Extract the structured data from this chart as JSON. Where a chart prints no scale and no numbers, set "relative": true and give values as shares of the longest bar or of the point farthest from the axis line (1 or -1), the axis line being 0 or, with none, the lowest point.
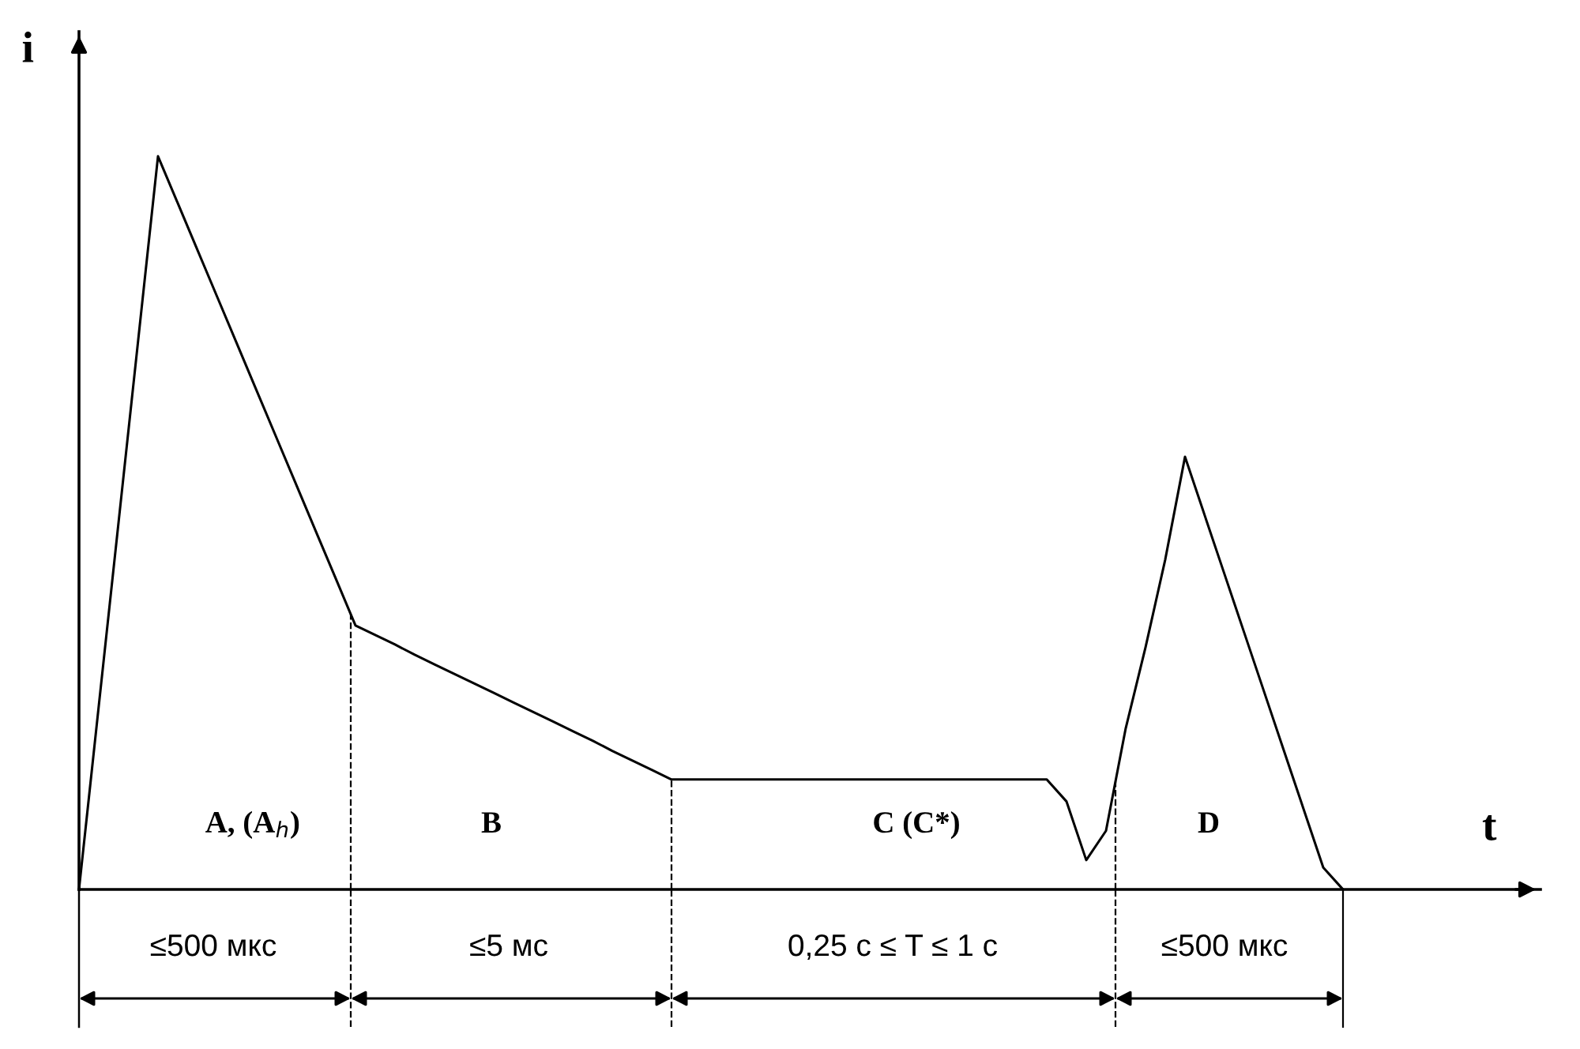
{
  "chart_data": {
    "type": "line",
    "relative": true,
    "xlabel": "t",
    "ylabel": "i",
    "color": "#000000",
    "categories": [
      null,
      null,
      null,
      null,
      null,
      null,
      null,
      null,
      null,
      null,
      null,
      null,
      null,
      null,
      null,
      null,
      null,
      null,
      null,
      null,
      null,
      null,
      null,
      null,
      null,
      null,
      null,
      null,
      null,
      null,
      null,
      null,
      null,
      null,
      null,
      null,
      null,
      null,
      null,
      null,
      null,
      null,
      null,
      null,
      null,
      null,
      null,
      null,
      null,
      null,
      null,
      null,
      null,
      null,
      null,
      null,
      null,
      null,
      null,
      null,
      null,
      null,
      null,
      null,
      null
    ],
    "values": [
      0,
      0.25,
      0.5,
      0.75,
      1,
      0.936,
      0.872,
      0.808,
      0.744,
      0.68,
      0.616,
      0.552,
      0.488,
      0.424,
      0.36,
      0.347,
      0.334,
      0.32,
      0.307,
      0.294,
      0.281,
      0.268,
      0.255,
      0.242,
      0.229,
      0.216,
      0.203,
      0.189,
      0.176,
      0.163,
      0.15,
      0.15,
      0.15,
      0.15,
      0.15,
      0.15,
      0.15,
      0.15,
      0.15,
      0.15,
      0.15,
      0.15,
      0.15,
      0.15,
      0.15,
      0.15,
      0.15,
      0.15,
      0.15,
      0.15,
      0.12,
      0.04,
      0.08,
      0.22,
      0.33,
      0.45,
      0.59,
      0.51,
      0.43,
      0.35,
      0.27,
      0.19,
      0.11,
      0.03,
      0
    ],
    "marker": "none",
    "line_style": "solid",
    "annotations": [
      "A, (A$_{h}$)",
      "B",
      "C (C*)",
      "D",
      "≤500 мкс",
      "≤5 мс",
      "0,25 с ≤ T ≤ 1 с",
      "≤500 мкс"
    ]
  }
}
